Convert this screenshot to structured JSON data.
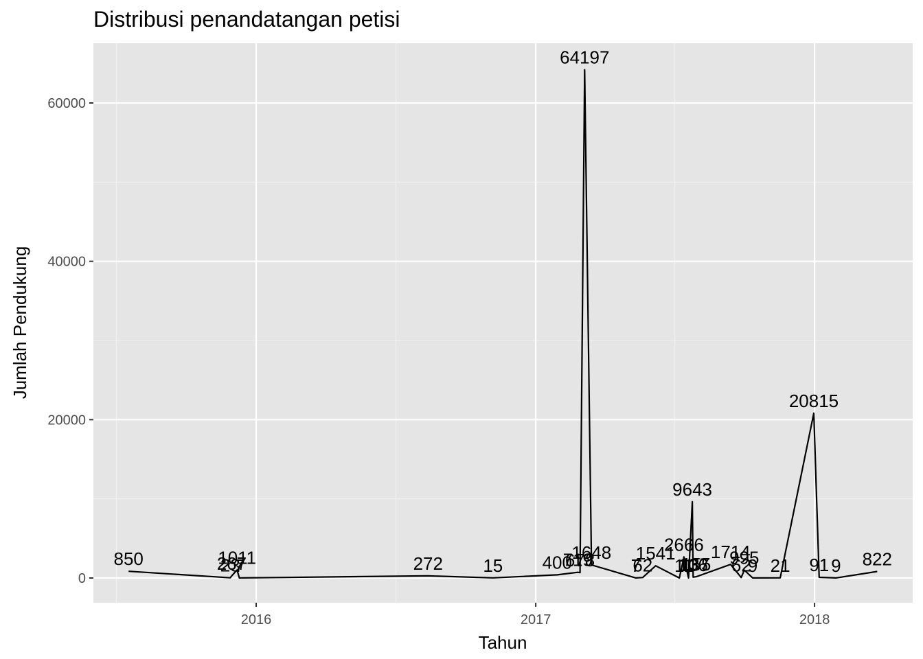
{
  "chart_data": {
    "type": "line",
    "title": "Distribusi penandatangan petisi",
    "xlabel": "Tahun",
    "ylabel": "Jumlah Pendukung",
    "x_ticks": [
      "2016",
      "2017",
      "2018"
    ],
    "y_ticks": [
      "0",
      "20000",
      "40000",
      "60000"
    ],
    "ylim": [
      -3000,
      67000
    ],
    "grid": true,
    "background_color": "#e5e5e5",
    "line_color": "#000000",
    "points": [
      {
        "x": "2015-07-18",
        "y": 850,
        "label": "850"
      },
      {
        "x": "2015-11-28",
        "y": 23,
        "label": "23"
      },
      {
        "x": "2015-11-30",
        "y": 267,
        "label": "267"
      },
      {
        "x": "2015-12-07",
        "y": 1011,
        "label": "1011"
      },
      {
        "x": "2015-12-10",
        "y": 7,
        "label": "7"
      },
      {
        "x": "2016-08-13",
        "y": 272,
        "label": "272"
      },
      {
        "x": "2016-11-06",
        "y": 15,
        "label": "15"
      },
      {
        "x": "2017-01-29",
        "y": 400,
        "label": "400"
      },
      {
        "x": "2017-02-25",
        "y": 719,
        "label": "719"
      },
      {
        "x": "2017-02-28",
        "y": 678,
        "label": "678"
      },
      {
        "x": "2017-03-06",
        "y": 64197,
        "label": "64197"
      },
      {
        "x": "2017-03-15",
        "y": 1648,
        "label": "1648"
      },
      {
        "x": "2017-05-12",
        "y": 7,
        "label": "7"
      },
      {
        "x": "2017-05-21",
        "y": 62,
        "label": "62"
      },
      {
        "x": "2017-06-07",
        "y": 1541,
        "label": "1541"
      },
      {
        "x": "2017-07-08",
        "y": 1,
        "label": "1"
      },
      {
        "x": "2017-07-14",
        "y": 2666,
        "label": "2666"
      },
      {
        "x": "2017-07-20",
        "y": 1,
        "label": "1"
      },
      {
        "x": "2017-07-25",
        "y": 9643,
        "label": "9643"
      },
      {
        "x": "2017-07-26",
        "y": 106,
        "label": "106"
      },
      {
        "x": "2017-07-28",
        "y": 137,
        "label": "137"
      },
      {
        "x": "2017-07-30",
        "y": 155,
        "label": "155"
      },
      {
        "x": "2017-09-13",
        "y": 1714,
        "label": "1714"
      },
      {
        "x": "2017-09-27",
        "y": 62,
        "label": "62"
      },
      {
        "x": "2017-10-01",
        "y": 995,
        "label": "995"
      },
      {
        "x": "2017-10-12",
        "y": 9,
        "label": "9"
      },
      {
        "x": "2017-11-17",
        "y": 21,
        "label": "21"
      },
      {
        "x": "2017-12-31",
        "y": 20815,
        "label": "20815"
      },
      {
        "x": "2018-01-07",
        "y": 91,
        "label": "91"
      },
      {
        "x": "2018-01-29",
        "y": 9,
        "label": "9"
      },
      {
        "x": "2018-03-24",
        "y": 822,
        "label": "822"
      }
    ]
  }
}
